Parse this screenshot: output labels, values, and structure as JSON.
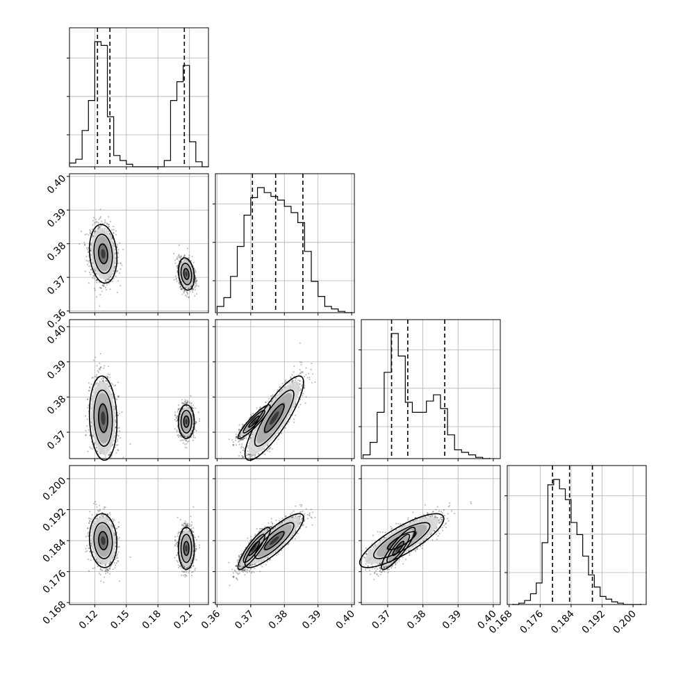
{
  "chart_data": {
    "type": "scatter",
    "title": "",
    "kind": "corner plot",
    "n_params": 4,
    "param_labels": [
      "",
      "",
      "",
      ""
    ],
    "ticks": [
      {
        "values": [
          0.12,
          0.15,
          0.18,
          0.21
        ],
        "labels": [
          "0.12",
          "0.15",
          "0.18",
          "0.21"
        ]
      },
      {
        "values": [
          0.36,
          0.37,
          0.38,
          0.39,
          0.4
        ],
        "labels": [
          "0.36",
          "0.37",
          "0.38",
          "0.39",
          "0.40"
        ]
      },
      {
        "values": [
          0.37,
          0.38,
          0.39,
          0.4
        ],
        "labels": [
          "0.37",
          "0.38",
          "0.39",
          "0.40"
        ]
      },
      {
        "values": [
          0.168,
          0.176,
          0.184,
          0.192,
          0.2
        ],
        "labels": [
          "0.168",
          "0.176",
          "0.184",
          "0.192",
          "0.200"
        ]
      }
    ],
    "ranges": [
      [
        0.096,
        0.228
      ],
      [
        0.3595,
        0.4008
      ],
      [
        0.3625,
        0.402
      ],
      [
        0.1675,
        0.2034
      ]
    ],
    "grid": true,
    "histograms": [
      {
        "param": 0,
        "edges": [
          0.096,
          0.102,
          0.108,
          0.114,
          0.12,
          0.126,
          0.132,
          0.138,
          0.144,
          0.15,
          0.156,
          0.162,
          0.168,
          0.174,
          0.18,
          0.186,
          0.192,
          0.198,
          0.204,
          0.21,
          0.216,
          0.222,
          0.228
        ],
        "counts": [
          0.03,
          0.06,
          0.29,
          0.53,
          1.0,
          0.97,
          0.4,
          0.09,
          0.05,
          0.02,
          0.0,
          0.0,
          0.0,
          0.0,
          0.0,
          0.05,
          0.53,
          0.68,
          0.81,
          0.2,
          0.04,
          0.0
        ],
        "quantiles": [
          0.1226,
          0.1344,
          0.2051
        ]
      },
      {
        "param": 1,
        "edges": [
          0.36,
          0.362,
          0.364,
          0.366,
          0.368,
          0.37,
          0.372,
          0.374,
          0.376,
          0.378,
          0.38,
          0.382,
          0.384,
          0.386,
          0.388,
          0.39,
          0.392,
          0.394,
          0.396,
          0.398,
          0.4
        ],
        "counts": [
          0.05,
          0.12,
          0.29,
          0.53,
          0.78,
          0.92,
          1.0,
          0.96,
          0.93,
          0.9,
          0.85,
          0.8,
          0.72,
          0.49,
          0.25,
          0.13,
          0.05,
          0.03,
          0.01,
          0.0
        ],
        "quantiles": [
          0.3705,
          0.3774,
          0.3855
        ]
      },
      {
        "param": 2,
        "edges": [
          0.363,
          0.365,
          0.367,
          0.369,
          0.371,
          0.373,
          0.375,
          0.377,
          0.379,
          0.381,
          0.383,
          0.385,
          0.387,
          0.389,
          0.391,
          0.393,
          0.395,
          0.397,
          0.399
        ],
        "counts": [
          0.03,
          0.13,
          0.37,
          0.69,
          1.0,
          0.82,
          0.45,
          0.37,
          0.37,
          0.46,
          0.51,
          0.4,
          0.19,
          0.07,
          0.05,
          0.03,
          0.01,
          0.0
        ],
        "quantiles": [
          0.3711,
          0.3757,
          0.3862
        ]
      },
      {
        "param": 3,
        "edges": [
          0.169,
          0.1705,
          0.172,
          0.1735,
          0.175,
          0.1765,
          0.178,
          0.1795,
          0.181,
          0.1825,
          0.184,
          0.1855,
          0.187,
          0.1885,
          0.19,
          0.1915,
          0.193,
          0.1945,
          0.196,
          0.1975,
          0.199,
          0.2005,
          0.202
        ],
        "counts": [
          0.0,
          0.01,
          0.03,
          0.08,
          0.16,
          0.46,
          0.89,
          0.93,
          0.86,
          0.78,
          0.61,
          0.52,
          0.36,
          0.22,
          0.13,
          0.06,
          0.04,
          0.02,
          0.01,
          0.0,
          0.0,
          0.0
        ],
        "quantiles": [
          0.1792,
          0.1836,
          0.1895
        ]
      }
    ],
    "clusters": [
      {
        "center": [
          0.128,
          0.377,
          0.374,
          0.184
        ],
        "sd": [
          0.006,
          0.004,
          0.0055,
          0.0032
        ],
        "weight": 0.5
      },
      {
        "center": [
          0.207,
          0.371,
          0.373,
          0.182
        ],
        "sd": [
          0.0035,
          0.0022,
          0.0022,
          0.0025
        ],
        "weight": 0.5
      }
    ],
    "sigma_levels": [
      0.5,
      1.0,
      1.5
    ]
  }
}
